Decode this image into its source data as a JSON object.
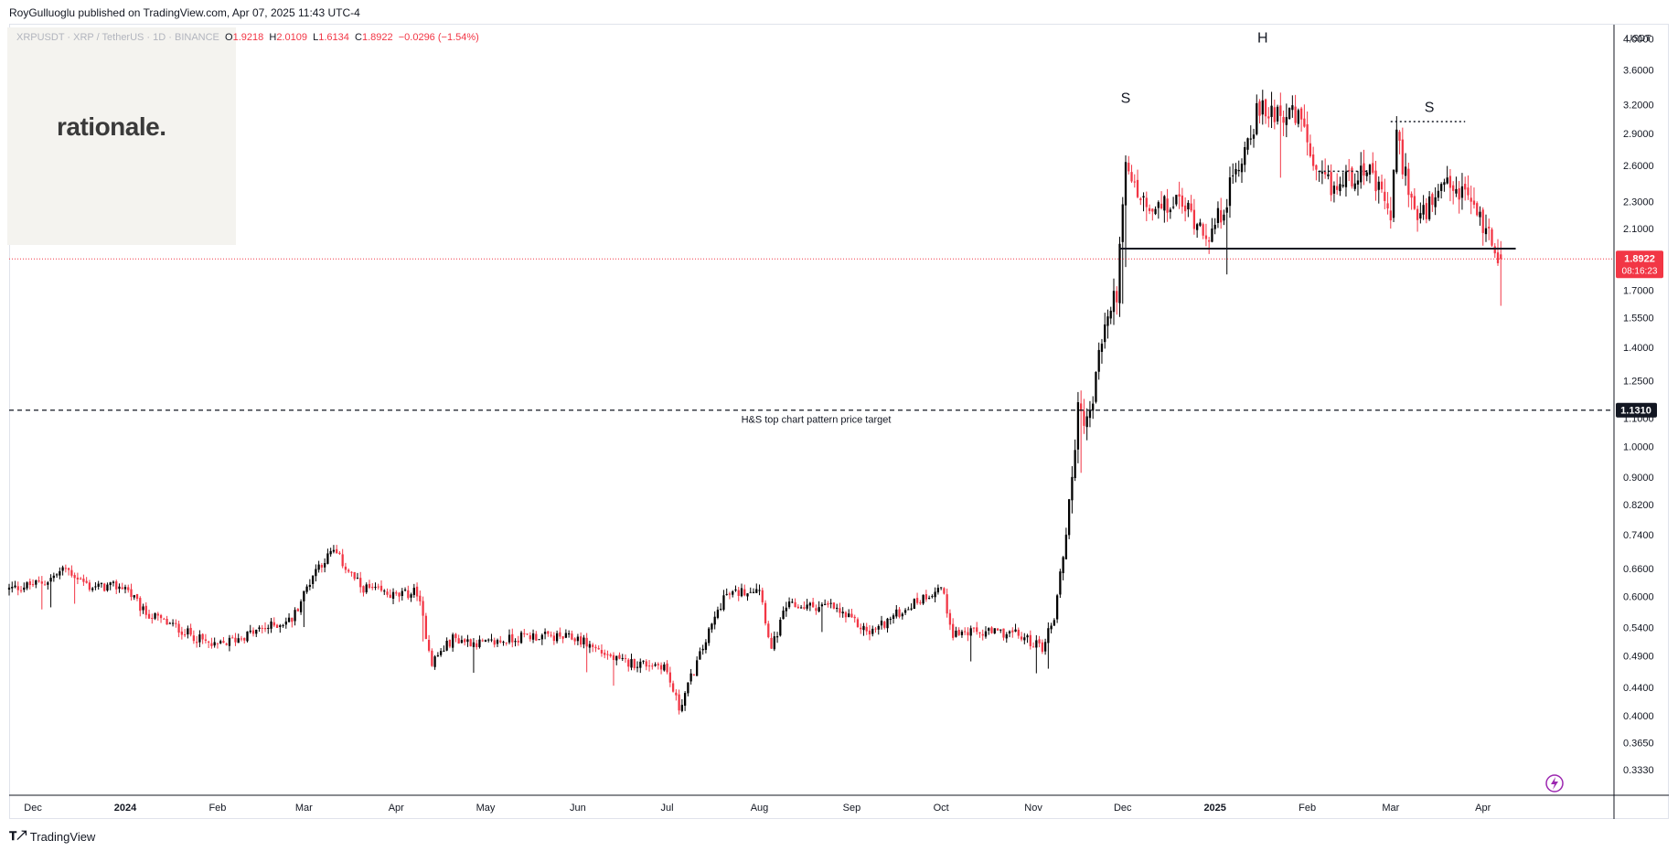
{
  "publisher": {
    "text": "RoyGulluoglu published on TradingView.com, Apr 07, 2025 11:43 UTC-4"
  },
  "logo": {
    "text": "rationale."
  },
  "legend": {
    "symbol": "XRPUSDT · XRP / TetherUS · 1D · BINANCE",
    "open_label": "O",
    "open": "1.9218",
    "high_label": "H",
    "high": "2.0109",
    "low_label": "L",
    "low": "1.6134",
    "close_label": "C",
    "close": "1.8922",
    "change": "−0.0296 (−1.54%)"
  },
  "axis": {
    "currency": "USDT"
  },
  "price_badge": {
    "price": "1.8922",
    "countdown": "08:16:23",
    "color": "#f23645"
  },
  "target_badge": {
    "price": "1.1310",
    "color": "#131722"
  },
  "footer": {
    "brand": "TradingView",
    "icon": "tradingview-logo-icon"
  },
  "chart_data": {
    "type": "candlestick",
    "symbol": "XRPUSDT",
    "timeframe": "1D",
    "y_scale": "log",
    "ylim": [
      0.305,
      4.2
    ],
    "x_range": [
      "2023-11-23",
      "2025-05-15"
    ],
    "y_ticks": [
      "4.0000",
      "3.6000",
      "3.2000",
      "2.9000",
      "2.6000",
      "2.3000",
      "2.1000",
      "1.7000",
      "1.5500",
      "1.4000",
      "1.2500",
      "1.1000",
      "1.0000",
      "0.9000",
      "0.8200",
      "0.7400",
      "0.6600",
      "0.6000",
      "0.5400",
      "0.4900",
      "0.4400",
      "0.4000",
      "0.3650",
      "0.3330"
    ],
    "x_ticks": [
      {
        "label": "Dec",
        "date": "2023-12-01"
      },
      {
        "label": "2024",
        "date": "2024-01-01",
        "bold": true
      },
      {
        "label": "Feb",
        "date": "2024-02-01"
      },
      {
        "label": "Mar",
        "date": "2024-03-01"
      },
      {
        "label": "Apr",
        "date": "2024-04-01"
      },
      {
        "label": "May",
        "date": "2024-05-01"
      },
      {
        "label": "Jun",
        "date": "2024-06-01"
      },
      {
        "label": "Jul",
        "date": "2024-07-01"
      },
      {
        "label": "Aug",
        "date": "2024-08-01"
      },
      {
        "label": "Sep",
        "date": "2024-09-01"
      },
      {
        "label": "Oct",
        "date": "2024-10-01"
      },
      {
        "label": "Nov",
        "date": "2024-11-01"
      },
      {
        "label": "Dec",
        "date": "2024-12-01"
      },
      {
        "label": "2025",
        "date": "2025-01-01",
        "bold": true
      },
      {
        "label": "Feb",
        "date": "2025-02-01"
      },
      {
        "label": "Mar",
        "date": "2025-03-01"
      },
      {
        "label": "Apr",
        "date": "2025-04-01"
      }
    ],
    "candle_start": "2023-11-23",
    "candle_end": "2025-04-07",
    "close_path": [
      [
        "2023-11-23",
        0.615
      ],
      [
        "2023-12-05",
        0.63
      ],
      [
        "2023-12-12",
        0.66
      ],
      [
        "2023-12-20",
        0.62
      ],
      [
        "2024-01-01",
        0.62
      ],
      [
        "2024-01-07",
        0.57
      ],
      [
        "2024-01-20",
        0.535
      ],
      [
        "2024-01-31",
        0.505
      ],
      [
        "2024-02-15",
        0.535
      ],
      [
        "2024-02-26",
        0.555
      ],
      [
        "2024-03-05",
        0.66
      ],
      [
        "2024-03-11",
        0.7
      ],
      [
        "2024-03-20",
        0.62
      ],
      [
        "2024-04-01",
        0.6
      ],
      [
        "2024-04-08",
        0.61
      ],
      [
        "2024-04-13",
        0.48
      ],
      [
        "2024-04-20",
        0.52
      ],
      [
        "2024-05-01",
        0.51
      ],
      [
        "2024-05-15",
        0.525
      ],
      [
        "2024-06-01",
        0.52
      ],
      [
        "2024-06-15",
        0.48
      ],
      [
        "2024-06-30",
        0.475
      ],
      [
        "2024-07-05",
        0.41
      ],
      [
        "2024-07-15",
        0.53
      ],
      [
        "2024-07-20",
        0.6
      ],
      [
        "2024-08-01",
        0.62
      ],
      [
        "2024-08-05",
        0.5
      ],
      [
        "2024-08-10",
        0.58
      ],
      [
        "2024-08-25",
        0.58
      ],
      [
        "2024-09-07",
        0.53
      ],
      [
        "2024-09-20",
        0.58
      ],
      [
        "2024-10-01",
        0.62
      ],
      [
        "2024-10-05",
        0.53
      ],
      [
        "2024-10-25",
        0.53
      ],
      [
        "2024-11-04",
        0.505
      ],
      [
        "2024-11-08",
        0.56
      ],
      [
        "2024-11-12",
        0.75
      ],
      [
        "2024-11-16",
        1.12
      ],
      [
        "2024-11-20",
        1.1
      ],
      [
        "2024-11-24",
        1.45
      ],
      [
        "2024-11-29",
        1.7
      ],
      [
        "2024-12-02",
        2.55
      ],
      [
        "2024-12-10",
        2.2
      ],
      [
        "2024-12-20",
        2.3
      ],
      [
        "2024-12-31",
        2.05
      ],
      [
        "2025-01-06",
        2.4
      ],
      [
        "2025-01-15",
        3.1
      ],
      [
        "2025-01-22",
        3.15
      ],
      [
        "2025-01-31",
        3.0
      ],
      [
        "2025-02-03",
        2.5
      ],
      [
        "2025-02-10",
        2.4
      ],
      [
        "2025-02-20",
        2.6
      ],
      [
        "2025-03-01",
        2.2
      ],
      [
        "2025-03-03",
        2.85
      ],
      [
        "2025-03-10",
        2.15
      ],
      [
        "2025-03-20",
        2.4
      ],
      [
        "2025-03-27",
        2.35
      ],
      [
        "2025-04-03",
        2.05
      ],
      [
        "2025-04-07",
        1.8922
      ]
    ],
    "last_price": 1.8922,
    "last_ohlc": {
      "open": 1.9218,
      "high": 2.0109,
      "low": 1.6134,
      "close": 1.8922
    },
    "up_color": "#000000",
    "down_color": "#f23645",
    "annotations": [
      {
        "type": "text",
        "label": "S",
        "date": "2024-12-02",
        "price": 3.22
      },
      {
        "type": "text",
        "label": "H",
        "date": "2025-01-17",
        "price": 3.95
      },
      {
        "type": "text",
        "label": "S",
        "date": "2025-03-14",
        "price": 3.12
      },
      {
        "type": "hline_segment",
        "name": "neckline",
        "price": 1.96,
        "from": "2024-11-30",
        "to": "2025-04-12",
        "style": "solid"
      },
      {
        "type": "hline_segment",
        "name": "right-shoulder-level",
        "price": 3.02,
        "from": "2025-03-01",
        "to": "2025-03-26",
        "style": "dotted"
      },
      {
        "type": "hline_segment",
        "name": "mid-level",
        "price": 2.55,
        "from": "2025-02-05",
        "to": "2025-02-22",
        "style": "dotted"
      },
      {
        "type": "hline",
        "name": "price-target",
        "price": 1.131,
        "style": "dashed",
        "label": "H&S top chart pattern price target"
      },
      {
        "type": "hline",
        "name": "last-price-line",
        "price": 1.8922,
        "style": "dotted",
        "color": "#f23645"
      }
    ]
  }
}
